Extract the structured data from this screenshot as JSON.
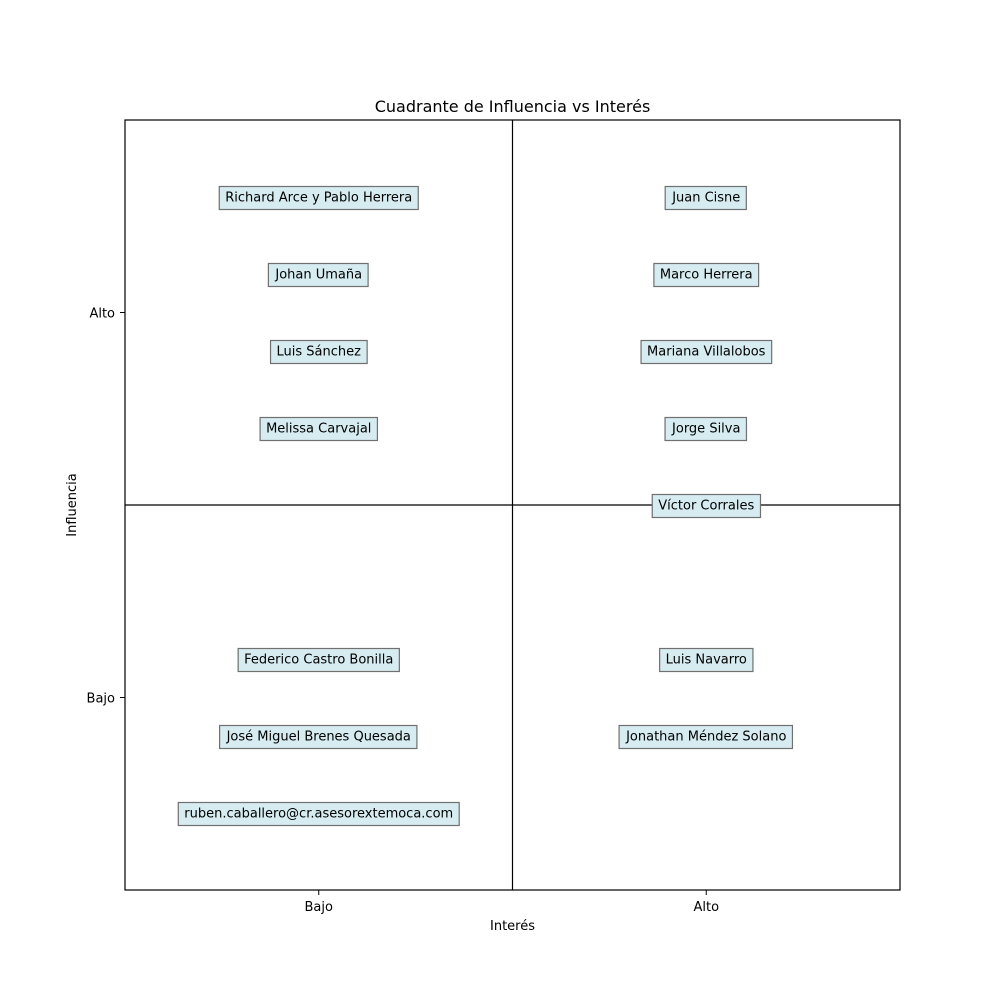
{
  "chart_data": {
    "type": "scatter",
    "title": "Cuadrante de Influencia vs Interés",
    "xlabel": "Interés",
    "ylabel": "Influencia",
    "xlim": [
      0,
      2
    ],
    "ylim": [
      0,
      2
    ],
    "x_ticks": [
      {
        "value": 0.5,
        "label": "Bajo"
      },
      {
        "value": 1.5,
        "label": "Alto"
      }
    ],
    "y_ticks": [
      {
        "value": 0.5,
        "label": "Bajo"
      },
      {
        "value": 1.5,
        "label": "Alto"
      }
    ],
    "divider_lines": {
      "x": 1,
      "y": 1
    },
    "grid": false,
    "legend": "none",
    "box_fill": "#d6ecf1",
    "box_edge": "#707070",
    "points": [
      {
        "label": "Richard Arce y Pablo Herrera",
        "x": 0.5,
        "y": 1.8
      },
      {
        "label": "Johan Umaña",
        "x": 0.5,
        "y": 1.6
      },
      {
        "label": "Luis Sánchez",
        "x": 0.5,
        "y": 1.4
      },
      {
        "label": "Melissa Carvajal",
        "x": 0.5,
        "y": 1.2
      },
      {
        "label": "Juan Cisne",
        "x": 1.5,
        "y": 1.8
      },
      {
        "label": "Marco Herrera",
        "x": 1.5,
        "y": 1.6
      },
      {
        "label": "Mariana Villalobos",
        "x": 1.5,
        "y": 1.4
      },
      {
        "label": "Jorge Silva",
        "x": 1.5,
        "y": 1.2
      },
      {
        "label": "Víctor Corrales",
        "x": 1.5,
        "y": 1.0
      },
      {
        "label": "Federico Castro Bonilla",
        "x": 0.5,
        "y": 0.6
      },
      {
        "label": "José Miguel Brenes Quesada",
        "x": 0.5,
        "y": 0.4
      },
      {
        "label": "ruben.caballero@cr.asesorextemoca.com",
        "x": 0.5,
        "y": 0.2
      },
      {
        "label": "Luis Navarro",
        "x": 1.5,
        "y": 0.6
      },
      {
        "label": "Jonathan Méndez Solano",
        "x": 1.5,
        "y": 0.4
      }
    ]
  }
}
